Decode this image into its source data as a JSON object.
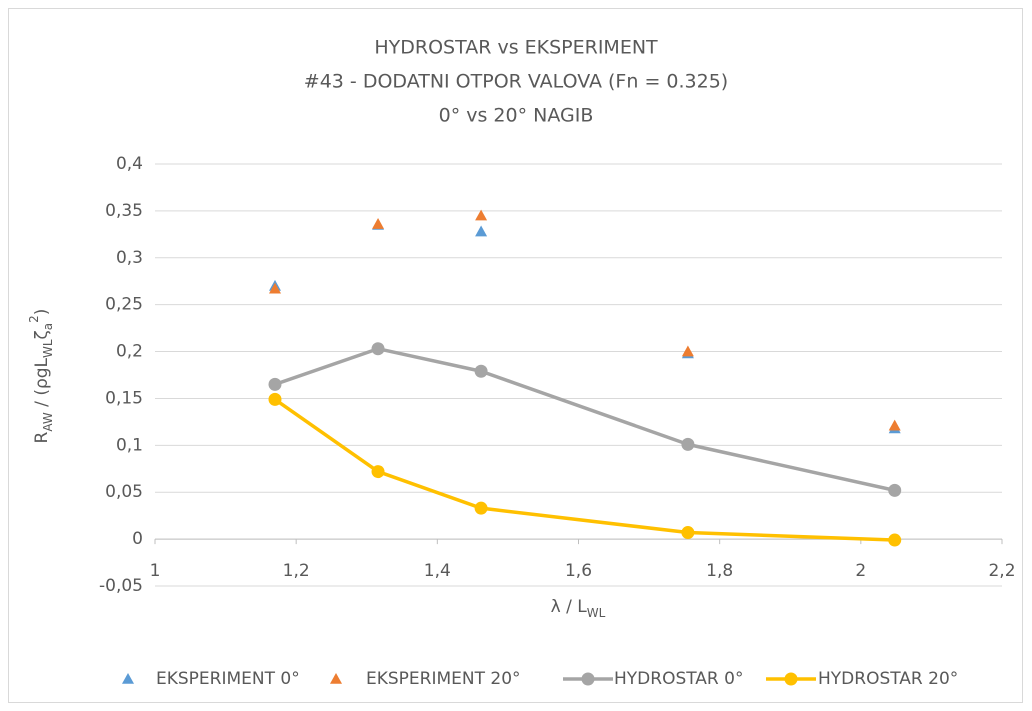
{
  "chart_data": {
    "type": "scatter",
    "title": [
      "HYDROSTAR vs EKSPERIMENT",
      "#43 - DODATNI OTPOR VALOVA (Fn = 0.325)",
      "0° vs 20°  NAGIB"
    ],
    "xlabel": [
      "λ / L",
      "WL"
    ],
    "ylabel": [
      "R",
      "AW",
      " / (ρgL",
      "WL",
      "ζ",
      "a",
      "2",
      ")"
    ],
    "x": [
      1.17,
      1.316,
      1.462,
      1.755,
      2.048
    ],
    "series": [
      {
        "name": "EKSPERIMENT 0°",
        "color": "#5b9bd5",
        "marker": "triangle",
        "line": false,
        "values": [
          0.27,
          0.335,
          0.328,
          0.198,
          0.118
        ]
      },
      {
        "name": "EKSPERIMENT 20°",
        "color": "#ed7d31",
        "marker": "triangle",
        "line": false,
        "values": [
          0.267,
          0.336,
          0.345,
          0.2,
          0.121
        ]
      },
      {
        "name": "HYDROSTAR 0°",
        "color": "#a5a5a5",
        "marker": "circle",
        "line": true,
        "values": [
          0.165,
          0.203,
          0.179,
          0.101,
          0.052
        ]
      },
      {
        "name": "HYDROSTAR 20°",
        "color": "#ffc000",
        "marker": "circle",
        "line": true,
        "values": [
          0.149,
          0.072,
          0.033,
          0.007,
          -0.001
        ]
      }
    ],
    "xlim": [
      1,
      2.2
    ],
    "xticks": [
      1,
      {
        "value": 1.2,
        "label": "1,2"
      },
      {
        "value": 1.4,
        "label": "1,4"
      },
      {
        "value": 1.6,
        "label": "1,6"
      },
      {
        "value": 1.8,
        "label": "1,8"
      },
      2,
      {
        "value": 2.2,
        "label": "2,2"
      }
    ],
    "ylim": [
      -0.05,
      0.4
    ],
    "yticks": [
      {
        "value": -0.05,
        "label": "-0,05"
      },
      0,
      {
        "value": 0.05,
        "label": "0,05"
      },
      {
        "value": 0.1,
        "label": "0,1"
      },
      {
        "value": 0.15,
        "label": "0,15"
      },
      {
        "value": 0.2,
        "label": "0,2"
      },
      {
        "value": 0.25,
        "label": "0,25"
      },
      {
        "value": 0.3,
        "label": "0,3"
      },
      {
        "value": 0.35,
        "label": "0,35"
      },
      {
        "value": 0.4,
        "label": "0,4"
      }
    ],
    "grid": true,
    "legend": "bottom"
  }
}
